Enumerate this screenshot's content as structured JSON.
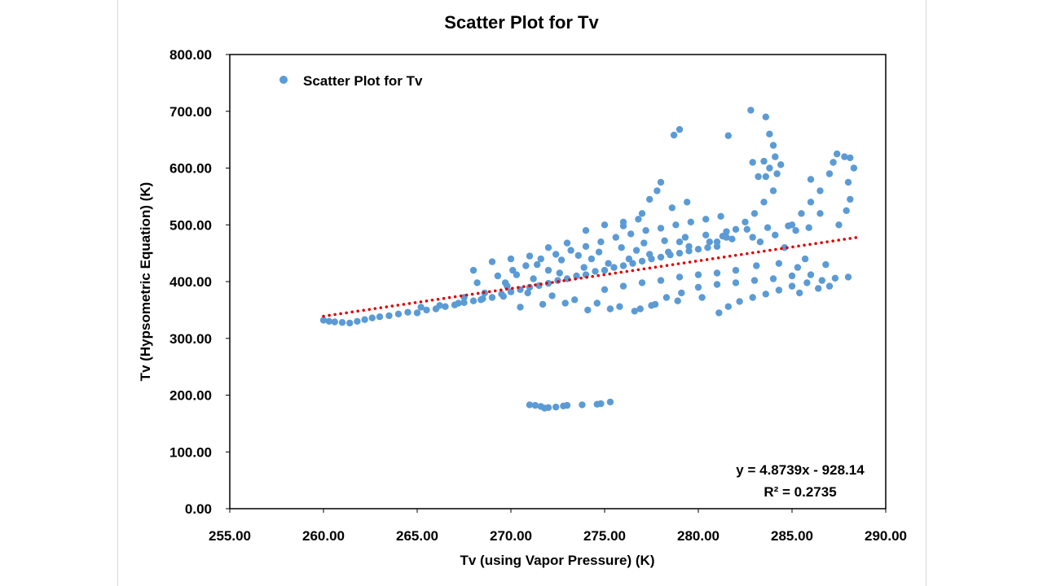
{
  "chart_data": {
    "type": "scatter",
    "title": "Scatter Plot for Tv",
    "xlabel": "Tv (using Vapor Pressure) (K)",
    "ylabel": "Tv (Hypsometric Equation) (K)",
    "xlim": [
      255,
      290
    ],
    "ylim": [
      0,
      800
    ],
    "x_ticks": [
      "255.00",
      "260.00",
      "265.00",
      "270.00",
      "275.00",
      "280.00",
      "285.00",
      "290.00"
    ],
    "y_ticks": [
      "0.00",
      "100.00",
      "200.00",
      "300.00",
      "400.00",
      "500.00",
      "600.00",
      "700.00",
      "800.00"
    ],
    "grid": false,
    "legend": {
      "position": "top-left",
      "entries": [
        "Scatter Plot for Tv"
      ]
    },
    "colors": {
      "points": "#5B9BD5",
      "trendline": "#E00000"
    },
    "series": [
      {
        "name": "Scatter Plot for Tv",
        "points": [
          [
            260.0,
            332
          ],
          [
            260.3,
            330
          ],
          [
            260.6,
            329
          ],
          [
            261.0,
            328
          ],
          [
            261.4,
            327
          ],
          [
            261.8,
            330
          ],
          [
            262.2,
            333
          ],
          [
            262.6,
            336
          ],
          [
            263.0,
            338
          ],
          [
            263.5,
            340
          ],
          [
            264.0,
            343
          ],
          [
            264.5,
            346
          ],
          [
            265.0,
            345
          ],
          [
            265.5,
            350
          ],
          [
            266.0,
            352
          ],
          [
            266.5,
            356
          ],
          [
            267.0,
            359
          ],
          [
            267.5,
            363
          ],
          [
            268.0,
            366
          ],
          [
            268.5,
            370
          ],
          [
            269.0,
            372
          ],
          [
            269.5,
            378
          ],
          [
            270.0,
            382
          ],
          [
            270.5,
            386
          ],
          [
            271.0,
            390
          ],
          [
            271.5,
            393
          ],
          [
            272.0,
            397
          ],
          [
            272.5,
            402
          ],
          [
            273.0,
            405
          ],
          [
            273.5,
            410
          ],
          [
            274.0,
            412
          ],
          [
            274.5,
            418
          ],
          [
            275.0,
            420
          ],
          [
            275.5,
            425
          ],
          [
            276.0,
            428
          ],
          [
            276.5,
            432
          ],
          [
            277.0,
            436
          ],
          [
            277.5,
            440
          ],
          [
            278.0,
            443
          ],
          [
            278.5,
            447
          ],
          [
            279.0,
            450
          ],
          [
            279.5,
            454
          ],
          [
            280.0,
            457
          ],
          [
            280.5,
            460
          ],
          [
            281.0,
            462
          ],
          [
            268.2,
            398
          ],
          [
            269.3,
            410
          ],
          [
            270.1,
            420
          ],
          [
            270.8,
            428
          ],
          [
            271.6,
            440
          ],
          [
            272.4,
            448
          ],
          [
            273.2,
            455
          ],
          [
            274.0,
            462
          ],
          [
            274.8,
            470
          ],
          [
            275.6,
            478
          ],
          [
            276.4,
            484
          ],
          [
            277.2,
            490
          ],
          [
            278.0,
            494
          ],
          [
            278.8,
            500
          ],
          [
            279.6,
            505
          ],
          [
            280.4,
            510
          ],
          [
            281.2,
            515
          ],
          [
            268.0,
            420
          ],
          [
            269.0,
            435
          ],
          [
            270.0,
            440
          ],
          [
            271.0,
            445
          ],
          [
            272.0,
            460
          ],
          [
            273.0,
            468
          ],
          [
            274.0,
            490
          ],
          [
            275.0,
            500
          ],
          [
            276.0,
            498
          ],
          [
            267.5,
            372
          ],
          [
            268.4,
            368
          ],
          [
            269.6,
            374
          ],
          [
            270.9,
            380
          ],
          [
            272.2,
            375
          ],
          [
            273.4,
            368
          ],
          [
            274.6,
            362
          ],
          [
            275.8,
            356
          ],
          [
            276.9,
            352
          ],
          [
            277.5,
            358
          ],
          [
            278.3,
            372
          ],
          [
            279.1,
            380
          ],
          [
            280.0,
            390
          ],
          [
            281.0,
            395
          ],
          [
            282.0,
            398
          ],
          [
            283.0,
            402
          ],
          [
            284.0,
            405
          ],
          [
            285.0,
            410
          ],
          [
            286.0,
            412
          ],
          [
            281.1,
            345
          ],
          [
            281.6,
            356
          ],
          [
            282.2,
            365
          ],
          [
            282.9,
            372
          ],
          [
            283.6,
            378
          ],
          [
            284.3,
            385
          ],
          [
            285.0,
            392
          ],
          [
            285.8,
            398
          ],
          [
            286.6,
            402
          ],
          [
            287.3,
            406
          ],
          [
            288.0,
            408
          ],
          [
            287.0,
            392
          ],
          [
            286.4,
            388
          ],
          [
            285.4,
            380
          ],
          [
            281.0,
            470
          ],
          [
            281.5,
            478
          ],
          [
            282.0,
            492
          ],
          [
            282.5,
            505
          ],
          [
            283.0,
            520
          ],
          [
            283.5,
            540
          ],
          [
            284.0,
            560
          ],
          [
            283.2,
            585
          ],
          [
            283.8,
            600
          ],
          [
            284.2,
            590
          ],
          [
            282.9,
            610
          ],
          [
            283.5,
            612
          ],
          [
            284.4,
            606
          ],
          [
            284.0,
            640
          ],
          [
            283.8,
            660
          ],
          [
            284.1,
            620
          ],
          [
            283.6,
            585
          ],
          [
            282.8,
            702
          ],
          [
            283.6,
            690
          ],
          [
            279.0,
            668
          ],
          [
            278.7,
            658
          ],
          [
            281.6,
            657
          ],
          [
            285.0,
            500
          ],
          [
            285.5,
            520
          ],
          [
            286.0,
            540
          ],
          [
            286.5,
            560
          ],
          [
            287.0,
            590
          ],
          [
            287.2,
            610
          ],
          [
            287.4,
            625
          ],
          [
            287.8,
            620
          ],
          [
            288.1,
            618
          ],
          [
            288.3,
            600
          ],
          [
            288.0,
            575
          ],
          [
            288.1,
            545
          ],
          [
            287.9,
            525
          ],
          [
            287.5,
            500
          ],
          [
            286.5,
            520
          ],
          [
            286.0,
            580
          ],
          [
            276.0,
            505
          ],
          [
            277.0,
            520
          ],
          [
            277.8,
            560
          ],
          [
            278.0,
            575
          ],
          [
            277.4,
            545
          ],
          [
            276.8,
            510
          ],
          [
            278.6,
            530
          ],
          [
            279.4,
            540
          ],
          [
            271.0,
            183
          ],
          [
            271.3,
            182
          ],
          [
            271.6,
            180
          ],
          [
            272.0,
            178
          ],
          [
            272.4,
            179
          ],
          [
            272.8,
            181
          ],
          [
            273.0,
            182
          ],
          [
            273.8,
            183
          ],
          [
            274.6,
            184
          ],
          [
            274.8,
            185
          ],
          [
            275.3,
            188
          ],
          [
            271.8,
            177
          ],
          [
            265.2,
            355
          ],
          [
            266.2,
            358
          ],
          [
            267.2,
            362
          ],
          [
            268.6,
            380
          ],
          [
            269.8,
            392
          ],
          [
            271.2,
            405
          ],
          [
            272.6,
            415
          ],
          [
            273.9,
            425
          ],
          [
            275.2,
            432
          ],
          [
            276.3,
            440
          ],
          [
            277.4,
            448
          ],
          [
            278.4,
            452
          ],
          [
            279.5,
            462
          ],
          [
            280.6,
            470
          ],
          [
            281.8,
            475
          ],
          [
            282.9,
            478
          ],
          [
            284.1,
            482
          ],
          [
            285.2,
            490
          ],
          [
            270.5,
            355
          ],
          [
            271.7,
            360
          ],
          [
            272.9,
            362
          ],
          [
            274.1,
            350
          ],
          [
            275.3,
            352
          ],
          [
            276.6,
            348
          ],
          [
            277.7,
            360
          ],
          [
            278.9,
            366
          ],
          [
            280.2,
            372
          ],
          [
            270.3,
            412
          ],
          [
            271.4,
            430
          ],
          [
            272.7,
            438
          ],
          [
            273.6,
            446
          ],
          [
            274.7,
            452
          ],
          [
            275.9,
            460
          ],
          [
            277.1,
            468
          ],
          [
            278.2,
            472
          ],
          [
            279.3,
            478
          ],
          [
            280.4,
            482
          ],
          [
            281.5,
            488
          ],
          [
            282.6,
            492
          ],
          [
            283.7,
            495
          ],
          [
            284.8,
            498
          ],
          [
            285.9,
            495
          ],
          [
            269.7,
            398
          ],
          [
            272.0,
            420
          ],
          [
            274.3,
            440
          ],
          [
            276.7,
            455
          ],
          [
            279.0,
            470
          ],
          [
            281.3,
            480
          ],
          [
            283.3,
            470
          ],
          [
            284.6,
            460
          ],
          [
            285.7,
            440
          ],
          [
            286.8,
            430
          ],
          [
            285.3,
            425
          ],
          [
            284.3,
            432
          ],
          [
            283.1,
            428
          ],
          [
            282.0,
            420
          ],
          [
            281.0,
            415
          ],
          [
            280.0,
            412
          ],
          [
            279.0,
            408
          ],
          [
            278.0,
            402
          ],
          [
            277.0,
            398
          ],
          [
            276.0,
            392
          ],
          [
            275.0,
            386
          ]
        ]
      }
    ],
    "trendline": {
      "type": "linear",
      "equation": "y = 4.8739x - 928.14",
      "r_squared": "R² = 0.2735",
      "slope": 4.8739,
      "intercept": -928.14,
      "x_range": [
        260,
        288.5
      ]
    }
  }
}
